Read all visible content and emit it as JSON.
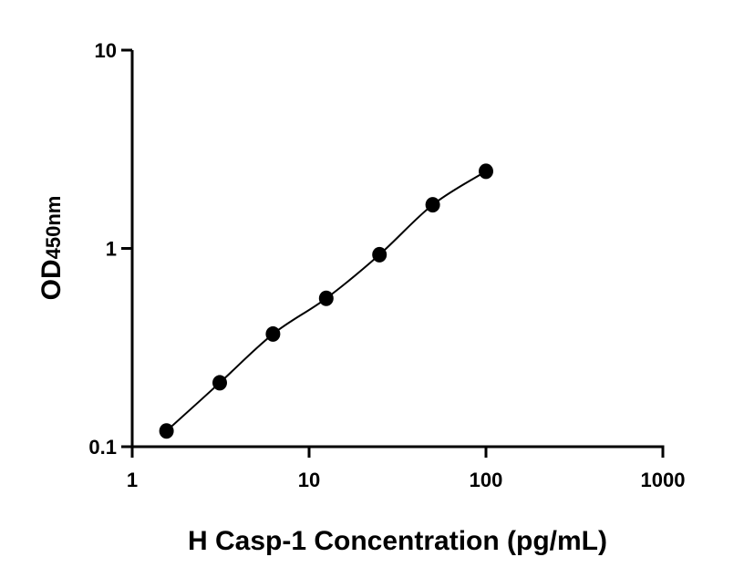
{
  "chart_data": {
    "type": "scatter",
    "title": "",
    "xlabel": "H Casp-1 Concentration (pg/mL)",
    "ylabel_main": "OD",
    "ylabel_sub": "450nm",
    "x_scale": "log",
    "y_scale": "log",
    "xlim": [
      1,
      1000
    ],
    "ylim": [
      0.1,
      10
    ],
    "x_ticks": [
      "1",
      "10",
      "100",
      "1000"
    ],
    "x_tick_values": [
      1,
      10,
      100,
      1000
    ],
    "y_ticks": [
      "0.1",
      "1",
      "10"
    ],
    "y_tick_values": [
      0.1,
      1,
      10
    ],
    "grid": false,
    "series": [
      {
        "x": [
          1.5625,
          3.125,
          6.25,
          12.5,
          25,
          50,
          100
        ],
        "y": [
          0.12,
          0.21,
          0.37,
          0.56,
          0.93,
          1.66,
          2.45
        ],
        "fit_line": true,
        "color": "#000000"
      }
    ]
  }
}
